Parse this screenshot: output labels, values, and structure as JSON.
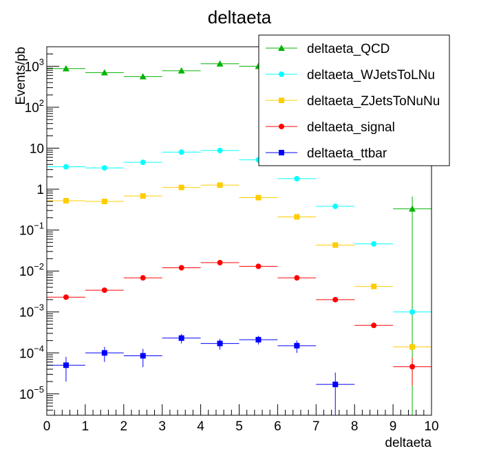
{
  "chart_data": {
    "type": "scatter",
    "title": "deltaeta",
    "xlabel": "deltaeta",
    "ylabel": "Events/pb",
    "xlim": [
      0,
      10
    ],
    "ylim": [
      3e-06,
      3000
    ],
    "yscale": "log",
    "grid": false,
    "legend_position": "top-right",
    "x_ticks": [
      "0",
      "1",
      "2",
      "3",
      "4",
      "5",
      "6",
      "7",
      "8",
      "9",
      "10"
    ],
    "bin_edges": [
      0,
      1,
      2,
      3,
      4,
      5,
      6,
      7,
      8,
      9,
      10
    ],
    "series": [
      {
        "name": "deltaeta_QCD",
        "color": "#00b400",
        "marker": "triangle",
        "points": [
          {
            "x": 0.5,
            "y": 880,
            "err": 0
          },
          {
            "x": 1.5,
            "y": 700,
            "err": 0
          },
          {
            "x": 2.5,
            "y": 560,
            "err": 0
          },
          {
            "x": 3.5,
            "y": 780,
            "err": 0
          },
          {
            "x": 4.5,
            "y": 1150,
            "err": 0
          },
          {
            "x": 5.5,
            "y": 1000,
            "err": 0
          },
          {
            "x": 9.5,
            "y": 0.33,
            "err": 0.33
          }
        ]
      },
      {
        "name": "deltaeta_WJetsToLNu",
        "color": "#00ffff",
        "marker": "circle",
        "points": [
          {
            "x": 0.5,
            "y": 3.5,
            "err": 0
          },
          {
            "x": 1.5,
            "y": 3.3,
            "err": 0
          },
          {
            "x": 2.5,
            "y": 4.5,
            "err": 0
          },
          {
            "x": 3.5,
            "y": 8.0,
            "err": 0
          },
          {
            "x": 4.5,
            "y": 8.8,
            "err": 0
          },
          {
            "x": 5.5,
            "y": 5.2,
            "err": 0
          },
          {
            "x": 6.5,
            "y": 1.8,
            "err": 0
          },
          {
            "x": 7.5,
            "y": 0.38,
            "err": 0
          },
          {
            "x": 8.5,
            "y": 0.046,
            "err": 0
          },
          {
            "x": 9.5,
            "y": 0.001,
            "err": 0
          }
        ]
      },
      {
        "name": "deltaeta_ZJetsToNuNu",
        "color": "#ffcc00",
        "marker": "square",
        "points": [
          {
            "x": 0.5,
            "y": 0.52,
            "err": 0
          },
          {
            "x": 1.5,
            "y": 0.5,
            "err": 0
          },
          {
            "x": 2.5,
            "y": 0.68,
            "err": 0
          },
          {
            "x": 3.5,
            "y": 1.1,
            "err": 0
          },
          {
            "x": 4.5,
            "y": 1.25,
            "err": 0
          },
          {
            "x": 5.5,
            "y": 0.62,
            "err": 0
          },
          {
            "x": 6.5,
            "y": 0.21,
            "err": 0
          },
          {
            "x": 7.5,
            "y": 0.043,
            "err": 0
          },
          {
            "x": 8.5,
            "y": 0.0042,
            "err": 0
          },
          {
            "x": 9.5,
            "y": 0.00014,
            "err": 0
          }
        ]
      },
      {
        "name": "deltaeta_signal",
        "color": "#ff0000",
        "marker": "circle",
        "points": [
          {
            "x": 0.5,
            "y": 0.0023,
            "err": 0
          },
          {
            "x": 1.5,
            "y": 0.0034,
            "err": 0
          },
          {
            "x": 2.5,
            "y": 0.0068,
            "err": 0
          },
          {
            "x": 3.5,
            "y": 0.012,
            "err": 0
          },
          {
            "x": 4.5,
            "y": 0.016,
            "err": 0
          },
          {
            "x": 5.5,
            "y": 0.013,
            "err": 0
          },
          {
            "x": 6.5,
            "y": 0.0068,
            "err": 0
          },
          {
            "x": 7.5,
            "y": 0.002,
            "err": 0
          },
          {
            "x": 8.5,
            "y": 0.00047,
            "err": 6e-05
          },
          {
            "x": 9.5,
            "y": 4.6e-05,
            "err": 3e-05
          }
        ]
      },
      {
        "name": "deltaeta_ttbar",
        "color": "#0000ff",
        "marker": "square",
        "points": [
          {
            "x": 0.5,
            "y": 5e-05,
            "err": 3e-05
          },
          {
            "x": 1.5,
            "y": 0.0001,
            "err": 4e-05
          },
          {
            "x": 2.5,
            "y": 8.5e-05,
            "err": 4e-05
          },
          {
            "x": 3.5,
            "y": 0.00023,
            "err": 6e-05
          },
          {
            "x": 4.5,
            "y": 0.00017,
            "err": 5e-05
          },
          {
            "x": 5.5,
            "y": 0.00021,
            "err": 5e-05
          },
          {
            "x": 6.5,
            "y": 0.00015,
            "err": 5e-05
          },
          {
            "x": 7.5,
            "y": 1.7e-05,
            "err": 1.6e-05
          }
        ]
      }
    ]
  }
}
